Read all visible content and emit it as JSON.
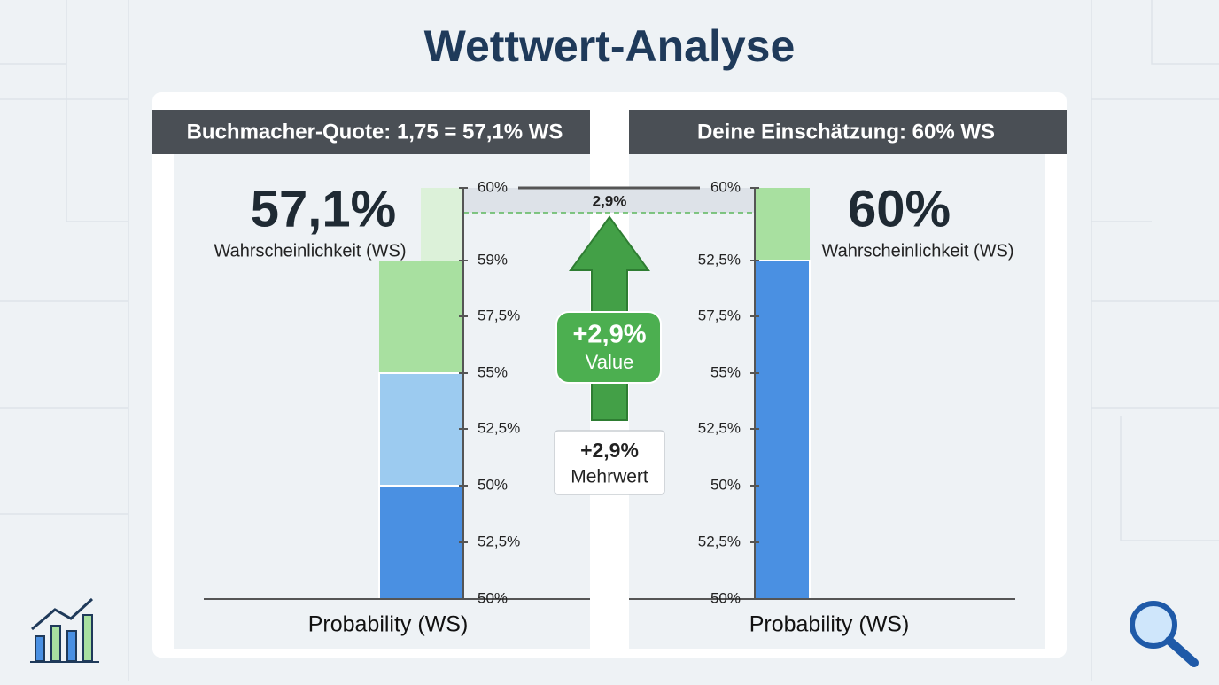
{
  "title": "Wettwert-Analyse",
  "panels": [
    {
      "header": "Buchmacher-Quote: 1,75 = 57,1% WS",
      "big_value": "57,1%",
      "big_label": "Wahrscheinlichkeit (WS)",
      "ticks": [
        "60%",
        "59%",
        "57,5%",
        "55%",
        "52,5%",
        "50%",
        "52,5%",
        "50%"
      ],
      "axis_title": "Probability (WS)"
    },
    {
      "header": "Deine Einschätzung: 60% WS",
      "big_value": "60%",
      "big_label": "Wahrscheinlichkeit (WS)",
      "ticks": [
        "60%",
        "52,5%",
        "57,5%",
        "55%",
        "52,5%",
        "50%",
        "52,5%",
        "50%"
      ],
      "axis_title": "Probability (WS)"
    }
  ],
  "gap_label": "2,9%",
  "arrow": {
    "value": "+2,9%",
    "label": "Value"
  },
  "callout": {
    "value": "+2,9%",
    "label": "Mehrwert"
  }
}
